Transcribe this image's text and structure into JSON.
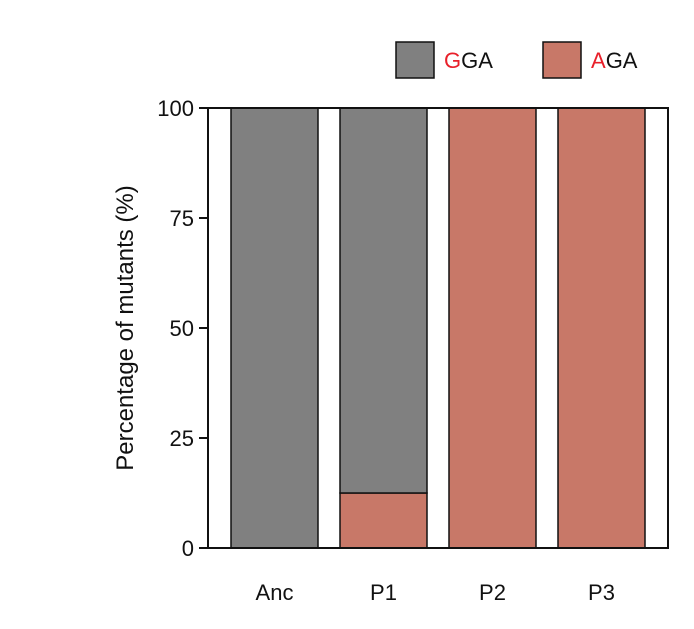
{
  "chart_data": {
    "type": "bar",
    "stacked": true,
    "categories": [
      "Anc",
      "P1",
      "P2",
      "P3"
    ],
    "series": [
      {
        "name": "AGA",
        "name_first": "A",
        "name_rest": "GA",
        "color": "#c87868",
        "values": [
          0,
          12.5,
          100,
          100
        ]
      },
      {
        "name": "GGA",
        "name_first": "G",
        "name_rest": "GA",
        "color": "#808080",
        "values": [
          100,
          87.5,
          0,
          0
        ]
      }
    ],
    "ylabel": "Percentage of mutants (%)",
    "ylim": [
      0,
      100
    ],
    "yticks": [
      0,
      25,
      50,
      75,
      100
    ],
    "grid": false,
    "legend_position": "top-right",
    "legend_order": [
      "GGA",
      "AGA"
    ],
    "highlight_color": "#e8202a"
  }
}
